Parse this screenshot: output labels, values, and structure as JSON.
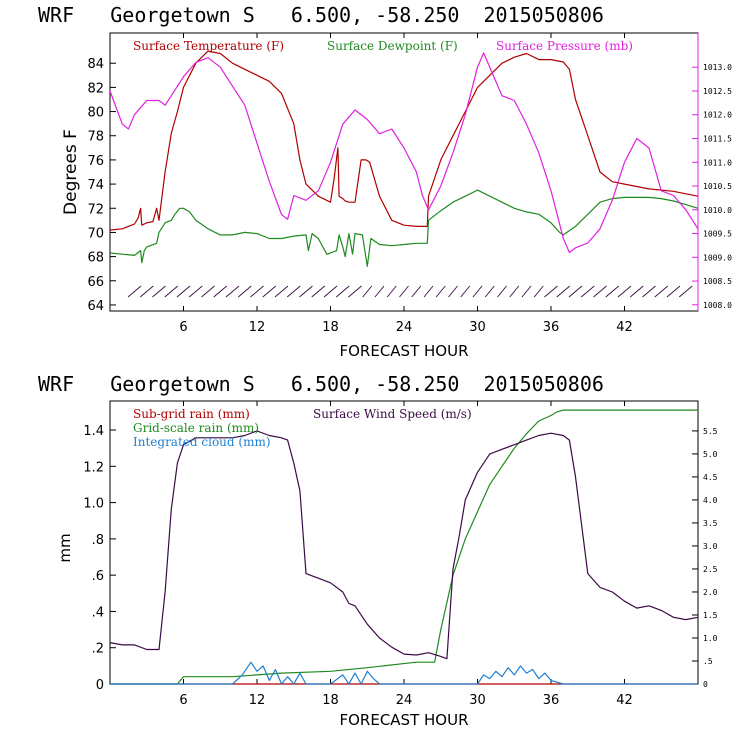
{
  "colors": {
    "temperature": "#b00000",
    "dewpoint": "#1f8a1f",
    "pressure": "#e020e0",
    "subgrid_rain": "#b00000",
    "gridscale_rain": "#1f8a1f",
    "cloud": "#1f7fd0",
    "wind": "#3b0a45",
    "axes": "#000000"
  },
  "chart_data": [
    {
      "type": "line",
      "title": "WRF   Georgetown S   6.500, -58.250  2015050806",
      "xlabel": "FORECAST HOUR",
      "ylabel": "Degrees F",
      "xlim": [
        0,
        48
      ],
      "ylim": [
        63.5,
        86.5
      ],
      "xticks": [
        6,
        12,
        18,
        24,
        30,
        36,
        42
      ],
      "yticks": [
        64,
        66,
        68,
        70,
        72,
        74,
        76,
        78,
        80,
        82,
        84
      ],
      "y2lim": [
        1007.87,
        1013.72
      ],
      "y2ticks": [
        "1008.0",
        "1008.5",
        "1009.0",
        "1009.5",
        "1010.0",
        "1010.5",
        "1011.0",
        "1011.5",
        "1012.0",
        "1012.5",
        "1013.0"
      ],
      "legend": [
        "Surface Temperature (F)",
        "Surface Dewpoint (F)",
        "Surface Pressure (mb)"
      ],
      "series": [
        {
          "name": "Surface Temperature (F)",
          "axis": "left",
          "x": [
            0,
            1,
            2,
            2.3,
            2.5,
            2.6,
            2.8,
            3,
            3.5,
            3.8,
            4,
            4.5,
            5,
            5.5,
            6,
            7,
            8,
            9,
            10,
            11,
            12,
            13,
            14,
            15,
            15.5,
            16,
            17,
            18,
            18.3,
            18.6,
            18.7,
            19,
            19.2,
            19.5,
            20,
            20.5,
            20.9,
            21.2,
            22,
            23,
            24,
            25,
            25.9,
            26,
            27,
            28,
            29,
            30,
            31,
            32,
            33,
            34,
            35,
            36,
            37,
            37.5,
            38,
            39,
            40,
            41,
            42,
            43,
            44,
            45,
            46,
            47,
            48
          ],
          "y": [
            70.2,
            70.3,
            70.7,
            71.2,
            72.0,
            70.6,
            70.7,
            70.8,
            70.9,
            72.0,
            71.0,
            75.0,
            78.2,
            80.0,
            82.0,
            84.0,
            85.0,
            84.8,
            84.0,
            83.5,
            83.0,
            82.5,
            81.5,
            79.0,
            76.0,
            74.0,
            73.0,
            72.5,
            74.5,
            77.0,
            73.0,
            72.8,
            72.6,
            72.5,
            72.5,
            76.0,
            76.0,
            75.8,
            73.0,
            71.0,
            70.6,
            70.5,
            70.5,
            73.0,
            76.0,
            78.0,
            80.0,
            82.0,
            83.0,
            84.0,
            84.5,
            84.8,
            84.3,
            84.3,
            84.1,
            83.5,
            81.0,
            78.0,
            75.0,
            74.2,
            74.0,
            73.8,
            73.6,
            73.5,
            73.4,
            73.2,
            73.0
          ]
        },
        {
          "name": "Surface Dewpoint (F)",
          "axis": "left",
          "x": [
            0,
            1,
            2,
            2.5,
            2.6,
            2.8,
            3,
            3.8,
            4,
            4.5,
            5,
            5.3,
            5.7,
            6,
            6.5,
            7,
            8,
            9,
            10,
            11,
            12,
            13,
            14,
            15,
            16,
            16.2,
            16.5,
            17,
            17.7,
            18,
            18.5,
            18.7,
            19,
            19.2,
            19.5,
            19.8,
            20,
            20.6,
            21,
            21.3,
            22,
            23,
            24,
            25,
            25.9,
            26,
            27,
            28,
            29,
            30,
            31,
            32,
            33,
            34,
            35,
            36,
            36.7,
            37,
            38,
            39,
            40,
            41,
            42,
            43,
            44,
            45,
            46,
            47,
            48
          ],
          "y": [
            68.3,
            68.2,
            68.1,
            68.5,
            67.5,
            68.5,
            68.8,
            69.1,
            70.0,
            70.8,
            71.0,
            71.5,
            72.0,
            72.0,
            71.7,
            71.0,
            70.3,
            69.8,
            69.8,
            70.0,
            69.9,
            69.5,
            69.5,
            69.7,
            69.8,
            68.5,
            69.9,
            69.5,
            68.2,
            68.3,
            68.5,
            69.8,
            68.8,
            68.0,
            69.9,
            68.2,
            69.9,
            69.8,
            67.2,
            69.5,
            69.0,
            68.9,
            69.0,
            69.1,
            69.1,
            71.0,
            71.8,
            72.5,
            73.0,
            73.5,
            73.0,
            72.5,
            72.0,
            71.7,
            71.5,
            70.8,
            70.0,
            69.8,
            70.5,
            71.5,
            72.5,
            72.8,
            72.9,
            72.9,
            72.9,
            72.8,
            72.6,
            72.3,
            72.0
          ]
        },
        {
          "name": "Surface Pressure (mb)",
          "axis": "right",
          "x": [
            0,
            1,
            1.5,
            2,
            3,
            4,
            4.5,
            5,
            6,
            7,
            8,
            9,
            10,
            11,
            12,
            13,
            14,
            14.5,
            15,
            16,
            17,
            18,
            19,
            20,
            21,
            22,
            23,
            24,
            25,
            25.5,
            26,
            27,
            28,
            29,
            30,
            30.5,
            31,
            31.5,
            32,
            33,
            34,
            35,
            36,
            37,
            37.5,
            38,
            39,
            40,
            41,
            42,
            43,
            44,
            45,
            46,
            47,
            48
          ],
          "y": [
            1012.5,
            1011.8,
            1011.7,
            1012.0,
            1012.3,
            1012.3,
            1012.2,
            1012.4,
            1012.8,
            1013.1,
            1013.2,
            1013.0,
            1012.6,
            1012.2,
            1011.4,
            1010.6,
            1009.9,
            1009.8,
            1010.3,
            1010.2,
            1010.4,
            1011.0,
            1011.8,
            1012.1,
            1011.9,
            1011.6,
            1011.7,
            1011.3,
            1010.8,
            1010.3,
            1010.0,
            1010.5,
            1011.2,
            1012.0,
            1013.0,
            1013.3,
            1013.0,
            1012.7,
            1012.4,
            1012.3,
            1011.8,
            1011.2,
            1010.4,
            1009.4,
            1009.1,
            1009.2,
            1009.3,
            1009.6,
            1010.2,
            1011.0,
            1011.5,
            1011.3,
            1010.4,
            1010.3,
            1010.0,
            1009.6
          ]
        }
      ]
    },
    {
      "type": "line",
      "title": "WRF   Georgetown S   6.500, -58.250  2015050806",
      "xlabel": "FORECAST HOUR",
      "ylabel": "mm",
      "xlim": [
        0,
        48
      ],
      "ylim": [
        0,
        1.56
      ],
      "xticks": [
        6,
        12,
        18,
        24,
        30,
        36,
        42
      ],
      "yticks": [
        0,
        0.2,
        0.4,
        0.6,
        0.8,
        1.0,
        1.2,
        1.4
      ],
      "ytick_labels": [
        "0",
        ".2",
        ".4",
        ".6",
        ".8",
        "1.0",
        "1.2",
        "1.4"
      ],
      "y2lim": [
        0,
        6.15
      ],
      "y2ticks": [
        "0",
        ".5",
        "1.0",
        "1.5",
        "2.0",
        "2.5",
        "3.0",
        "3.5",
        "4.0",
        "4.5",
        "5.0",
        "5.5"
      ],
      "legend": [
        "Sub-grid rain (mm)",
        "Surface Wind Speed (m/s)",
        "Grid-scale rain (mm)",
        "Integrated cloud (mm)"
      ],
      "series": [
        {
          "name": "Sub-grid rain (mm)",
          "axis": "left",
          "x": [
            0,
            48
          ],
          "y": [
            0,
            0
          ]
        },
        {
          "name": "Grid-scale rain (mm)",
          "axis": "left",
          "x": [
            0,
            5.5,
            6,
            10,
            12,
            14,
            18,
            21,
            25,
            26.5,
            27,
            28,
            29,
            30,
            31,
            32,
            33,
            34,
            35,
            36,
            36.5,
            37,
            48
          ],
          "y": [
            0,
            0,
            0.04,
            0.04,
            0.05,
            0.06,
            0.07,
            0.09,
            0.12,
            0.12,
            0.3,
            0.6,
            0.8,
            0.95,
            1.1,
            1.2,
            1.3,
            1.38,
            1.45,
            1.48,
            1.5,
            1.51,
            1.51
          ]
        },
        {
          "name": "Integrated cloud (mm)",
          "axis": "left",
          "x": [
            0,
            10,
            10.8,
            11.5,
            12,
            12.5,
            13,
            13.5,
            14,
            14.5,
            15,
            15.5,
            16,
            18,
            19,
            19.5,
            20,
            20.5,
            21,
            21.5,
            22,
            26,
            30,
            30.5,
            31,
            31.5,
            32,
            32.5,
            33,
            33.5,
            34,
            34.5,
            35,
            35.5,
            36,
            37,
            48
          ],
          "y": [
            0,
            0,
            0.05,
            0.12,
            0.07,
            0.1,
            0.02,
            0.08,
            0,
            0.04,
            0,
            0.06,
            0,
            0,
            0.05,
            0,
            0.06,
            0,
            0.07,
            0.03,
            0,
            0,
            0,
            0.05,
            0.03,
            0.07,
            0.04,
            0.09,
            0.05,
            0.1,
            0.06,
            0.08,
            0.03,
            0.06,
            0.02,
            0,
            0
          ]
        },
        {
          "name": "Surface Wind Speed (m/s)",
          "axis": "right",
          "x": [
            0,
            1,
            2,
            3,
            4,
            4.5,
            5,
            5.5,
            6,
            7,
            8,
            9,
            10,
            11,
            12,
            13,
            14,
            14.5,
            15,
            15.5,
            16,
            17,
            18,
            19,
            19.5,
            20,
            21,
            22,
            23,
            24,
            25,
            26,
            27,
            27.5,
            28,
            28.5,
            29,
            30,
            31,
            32,
            33,
            34,
            35,
            36,
            37,
            37.5,
            38,
            39,
            40,
            41,
            42,
            43,
            44,
            45,
            46,
            47,
            48
          ],
          "y": [
            0.9,
            0.85,
            0.85,
            0.75,
            0.75,
            2.0,
            3.8,
            4.8,
            5.2,
            5.35,
            5.35,
            5.35,
            5.35,
            5.4,
            5.5,
            5.4,
            5.35,
            5.3,
            4.8,
            4.2,
            2.4,
            2.3,
            2.2,
            2.0,
            1.75,
            1.7,
            1.3,
            1.0,
            0.8,
            0.65,
            0.63,
            0.68,
            0.6,
            0.55,
            2.5,
            3.2,
            4.0,
            4.6,
            5.0,
            5.1,
            5.2,
            5.3,
            5.4,
            5.45,
            5.4,
            5.3,
            4.5,
            2.4,
            2.1,
            2.0,
            1.8,
            1.65,
            1.7,
            1.6,
            1.45,
            1.4,
            1.45
          ]
        }
      ]
    }
  ]
}
